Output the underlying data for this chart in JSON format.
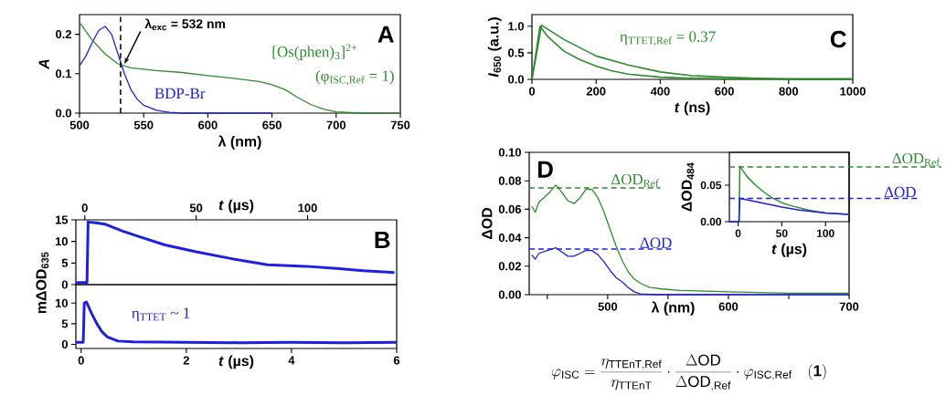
{
  "chart_data": [
    {
      "type": "line",
      "xlabel": "λ (nm)",
      "ylabel": "A",
      "xlim": [
        500,
        750
      ],
      "ylim": [
        0,
        0.25
      ],
      "xticks": [
        500,
        550,
        600,
        650,
        700,
        750
      ],
      "yticks": [
        {
          "value": 0,
          "label": "0.0"
        },
        {
          "value": 0.1,
          "label": "0.1"
        },
        {
          "value": 0.2,
          "label": "0.2"
        }
      ],
      "series": [
        {
          "name": "BDP-Br",
          "color": "#1f1fe0",
          "x": [
            500,
            505,
            510,
            515,
            520,
            525,
            530,
            535,
            540,
            545,
            550,
            560,
            570,
            580,
            600,
            650
          ],
          "values": [
            0.12,
            0.145,
            0.18,
            0.21,
            0.22,
            0.2,
            0.15,
            0.1,
            0.06,
            0.035,
            0.02,
            0.007,
            0.002,
            0,
            0,
            0
          ]
        },
        {
          "name": "[Os(phen)$_{3}$]$^{2+}$",
          "color": "#2e8b2e",
          "x": [
            500,
            510,
            520,
            530,
            540,
            560,
            580,
            600,
            620,
            640,
            650,
            660,
            670,
            680,
            690,
            700,
            720,
            750
          ],
          "values": [
            0.23,
            0.185,
            0.15,
            0.125,
            0.115,
            0.108,
            0.103,
            0.095,
            0.088,
            0.08,
            0.072,
            0.06,
            0.04,
            0.022,
            0.01,
            0.003,
            0,
            0
          ]
        }
      ],
      "ref_lines": [
        {
          "axis": "x",
          "value": 532,
          "label": "λ$_{exc}$ = 532 nm",
          "color": "#000000",
          "line_style": "dashed"
        }
      ],
      "annotations": [
        "(φ$_{ISC,Ref}$ = 1)",
        "A"
      ]
    },
    {
      "type": "line",
      "xlabel": "*t* (µs)",
      "xlim": [
        -4,
        140
      ],
      "xticks": [
        0,
        50,
        100
      ],
      "ylim": [
        0,
        15
      ],
      "yticks": [
        0,
        5,
        10,
        15
      ],
      "series": [
        {
          "color": "#1f1fe0",
          "x": [
            -4,
            1,
            1.5,
            5,
            9,
            17,
            25,
            36,
            50,
            66,
            82,
            99,
            113,
            125,
            139
          ],
          "values": [
            0.5,
            0.5,
            14.5,
            14.3,
            14,
            12.4,
            11,
            9.2,
            7.6,
            6,
            4.6,
            4.25,
            3.75,
            3.2,
            2.8
          ]
        }
      ],
      "annotations": [
        "B"
      ]
    },
    {
      "type": "line",
      "xlabel": "*t* (µs)",
      "ylabel": "mΔOD$_{635}$",
      "xlim": [
        -0.1,
        6
      ],
      "ylim": [
        -1,
        14.5
      ],
      "xticks": [
        0,
        2,
        4,
        6
      ],
      "yticks": [
        0,
        5,
        10
      ],
      "series": [
        {
          "color": "#1f1fe0",
          "x": [
            -0.1,
            0.04,
            0.06,
            0.1,
            0.2,
            0.3,
            0.4,
            0.5,
            0.7,
            1,
            2,
            3,
            4,
            5,
            6
          ],
          "values": [
            0.5,
            0.5,
            10,
            10.3,
            7.5,
            5,
            3,
            1.8,
            0.8,
            0.6,
            0.5,
            0.4,
            0.5,
            0.4,
            0.5
          ]
        }
      ],
      "annotations": [
        "η$_{TTET}$ ~ 1"
      ]
    },
    {
      "type": "line",
      "xlabel": "*t* (ns)",
      "ylabel": "*I*$_{650}$ (a.u.)",
      "xlim": [
        0,
        1000
      ],
      "ylim": [
        0,
        1.22
      ],
      "xticks": [
        0,
        200,
        400,
        600,
        800,
        1000
      ],
      "yticks": [
        {
          "value": 0,
          "label": "0.0"
        },
        {
          "value": 0.5,
          "label": "0.5"
        },
        {
          "value": 1,
          "label": "1.0"
        }
      ],
      "series": [
        {
          "color": "#2e8b2e",
          "x": [
            0,
            25,
            50,
            100,
            150,
            200,
            250,
            300,
            400,
            500,
            600,
            800,
            1000
          ],
          "values": [
            0,
            1.0,
            0.8,
            0.53,
            0.37,
            0.25,
            0.16,
            0.1,
            0.04,
            0.02,
            0.01,
            0,
            0
          ]
        },
        {
          "color": "#2e8b2e",
          "x": [
            0,
            30,
            100,
            200,
            300,
            400,
            500,
            600,
            700,
            800,
            1000
          ],
          "values": [
            0,
            1.02,
            0.75,
            0.44,
            0.27,
            0.14,
            0.07,
            0.04,
            0.02,
            0.01,
            0.01
          ]
        }
      ],
      "annotations": [
        "η$_{TTET,Ref}$ = 0.37",
        "C"
      ]
    },
    {
      "type": "line",
      "xlabel": "λ (nm)",
      "ylabel": "ΔOD",
      "xlim": [
        435,
        700
      ],
      "ylim": [
        0,
        0.1
      ],
      "xticks": [
        {
          "value": 450,
          "label": null
        },
        500,
        {
          "value": 550,
          "label": null
        },
        600,
        {
          "value": 650,
          "label": null
        },
        700
      ],
      "yticks": [
        {
          "value": 0,
          "label": "0.00"
        },
        {
          "value": 0.02,
          "label": "0.02"
        },
        {
          "value": 0.04,
          "label": "0.04"
        },
        {
          "value": 0.06,
          "label": "0.06"
        },
        {
          "value": 0.08,
          "label": "0.08"
        },
        {
          "value": 0.1,
          "label": "0.10"
        }
      ],
      "series": [
        {
          "color": "#2e8b2e",
          "x": [
            437,
            440,
            443,
            447,
            452,
            457,
            462,
            467,
            472,
            477,
            482,
            487,
            492,
            497,
            502,
            507,
            512,
            517,
            522,
            527,
            535,
            545,
            560,
            600,
            650,
            700
          ],
          "values": [
            0.062,
            0.058,
            0.065,
            0.068,
            0.072,
            0.077,
            0.072,
            0.066,
            0.064,
            0.068,
            0.074,
            0.074,
            0.068,
            0.058,
            0.046,
            0.034,
            0.024,
            0.016,
            0.011,
            0.008,
            0.005,
            0.004,
            0.003,
            0.002,
            0.001,
            0.001
          ]
        },
        {
          "color": "#1f1fe0",
          "x": [
            437,
            440,
            443,
            450,
            457,
            462,
            467,
            472,
            477,
            482,
            487,
            492,
            497,
            502,
            507,
            512,
            517,
            522,
            527,
            540,
            600,
            700
          ],
          "values": [
            0.028,
            0.025,
            0.029,
            0.031,
            0.033,
            0.03,
            0.027,
            0.027,
            0.029,
            0.031,
            0.031,
            0.028,
            0.023,
            0.017,
            0.012,
            0.009,
            0.005,
            0.002,
            0.0005,
            0,
            0,
            0
          ]
        }
      ],
      "ref_lines": [
        {
          "axis": "y",
          "value": 0.075,
          "label": "ΔOD$_{Ref}$",
          "color": "#2e8b2e",
          "line_style": "dashed"
        },
        {
          "axis": "y",
          "value": 0.032,
          "label": "ΔOD",
          "color": "#1f1fe0",
          "line_style": "dashed"
        }
      ],
      "annotations": [
        "D",
        "\\varphi_{\\mathrm{ISC}} = \\frac{\\eta_{\\mathrm{TTEnT,Ref}}}{\\eta_{\\mathrm{TTEnT}}}\\cdot\\frac{\\Delta\\mathrm{OD}}{\\Delta\\mathrm{OD}_{\\mathrm{,Ref}}}\\cdot\\varphi_{\\mathrm{ISC,Ref}}\\quad\\mathbf{(1)}"
      ]
    },
    {
      "type": "line",
      "xlabel": "*t* (µs)",
      "ylabel": "ΔOD$_{484}$",
      "xlim": [
        -10,
        127
      ],
      "ylim": [
        0,
        0.095
      ],
      "xticks": [
        0,
        50,
        100
      ],
      "yticks": [
        {
          "value": 0,
          "label": "0.00"
        },
        {
          "value": 0.05,
          "label": "0.05"
        }
      ],
      "series": [
        {
          "color": "#2e8b2e",
          "x": [
            -10,
            1,
            2,
            10,
            20,
            30,
            40,
            50,
            60,
            80,
            100,
            127
          ],
          "values": [
            0,
            0,
            0.076,
            0.062,
            0.05,
            0.04,
            0.032,
            0.026,
            0.022,
            0.016,
            0.012,
            0.01
          ]
        },
        {
          "color": "#1f1fe0",
          "x": [
            -10,
            1,
            2,
            10,
            30,
            50,
            70,
            100,
            127
          ],
          "values": [
            0,
            0,
            0.032,
            0.03,
            0.025,
            0.02,
            0.016,
            0.012,
            0.01
          ]
        }
      ],
      "ref_lines": [
        {
          "axis": "y",
          "value": 0.075,
          "label": "ΔOD$_{Ref}$",
          "color": "#2e8b2e",
          "line_style": "dashed"
        },
        {
          "axis": "y",
          "value": 0.032,
          "label": "ΔOD",
          "color": "#1f1fe0",
          "line_style": "dashed"
        }
      ]
    }
  ]
}
